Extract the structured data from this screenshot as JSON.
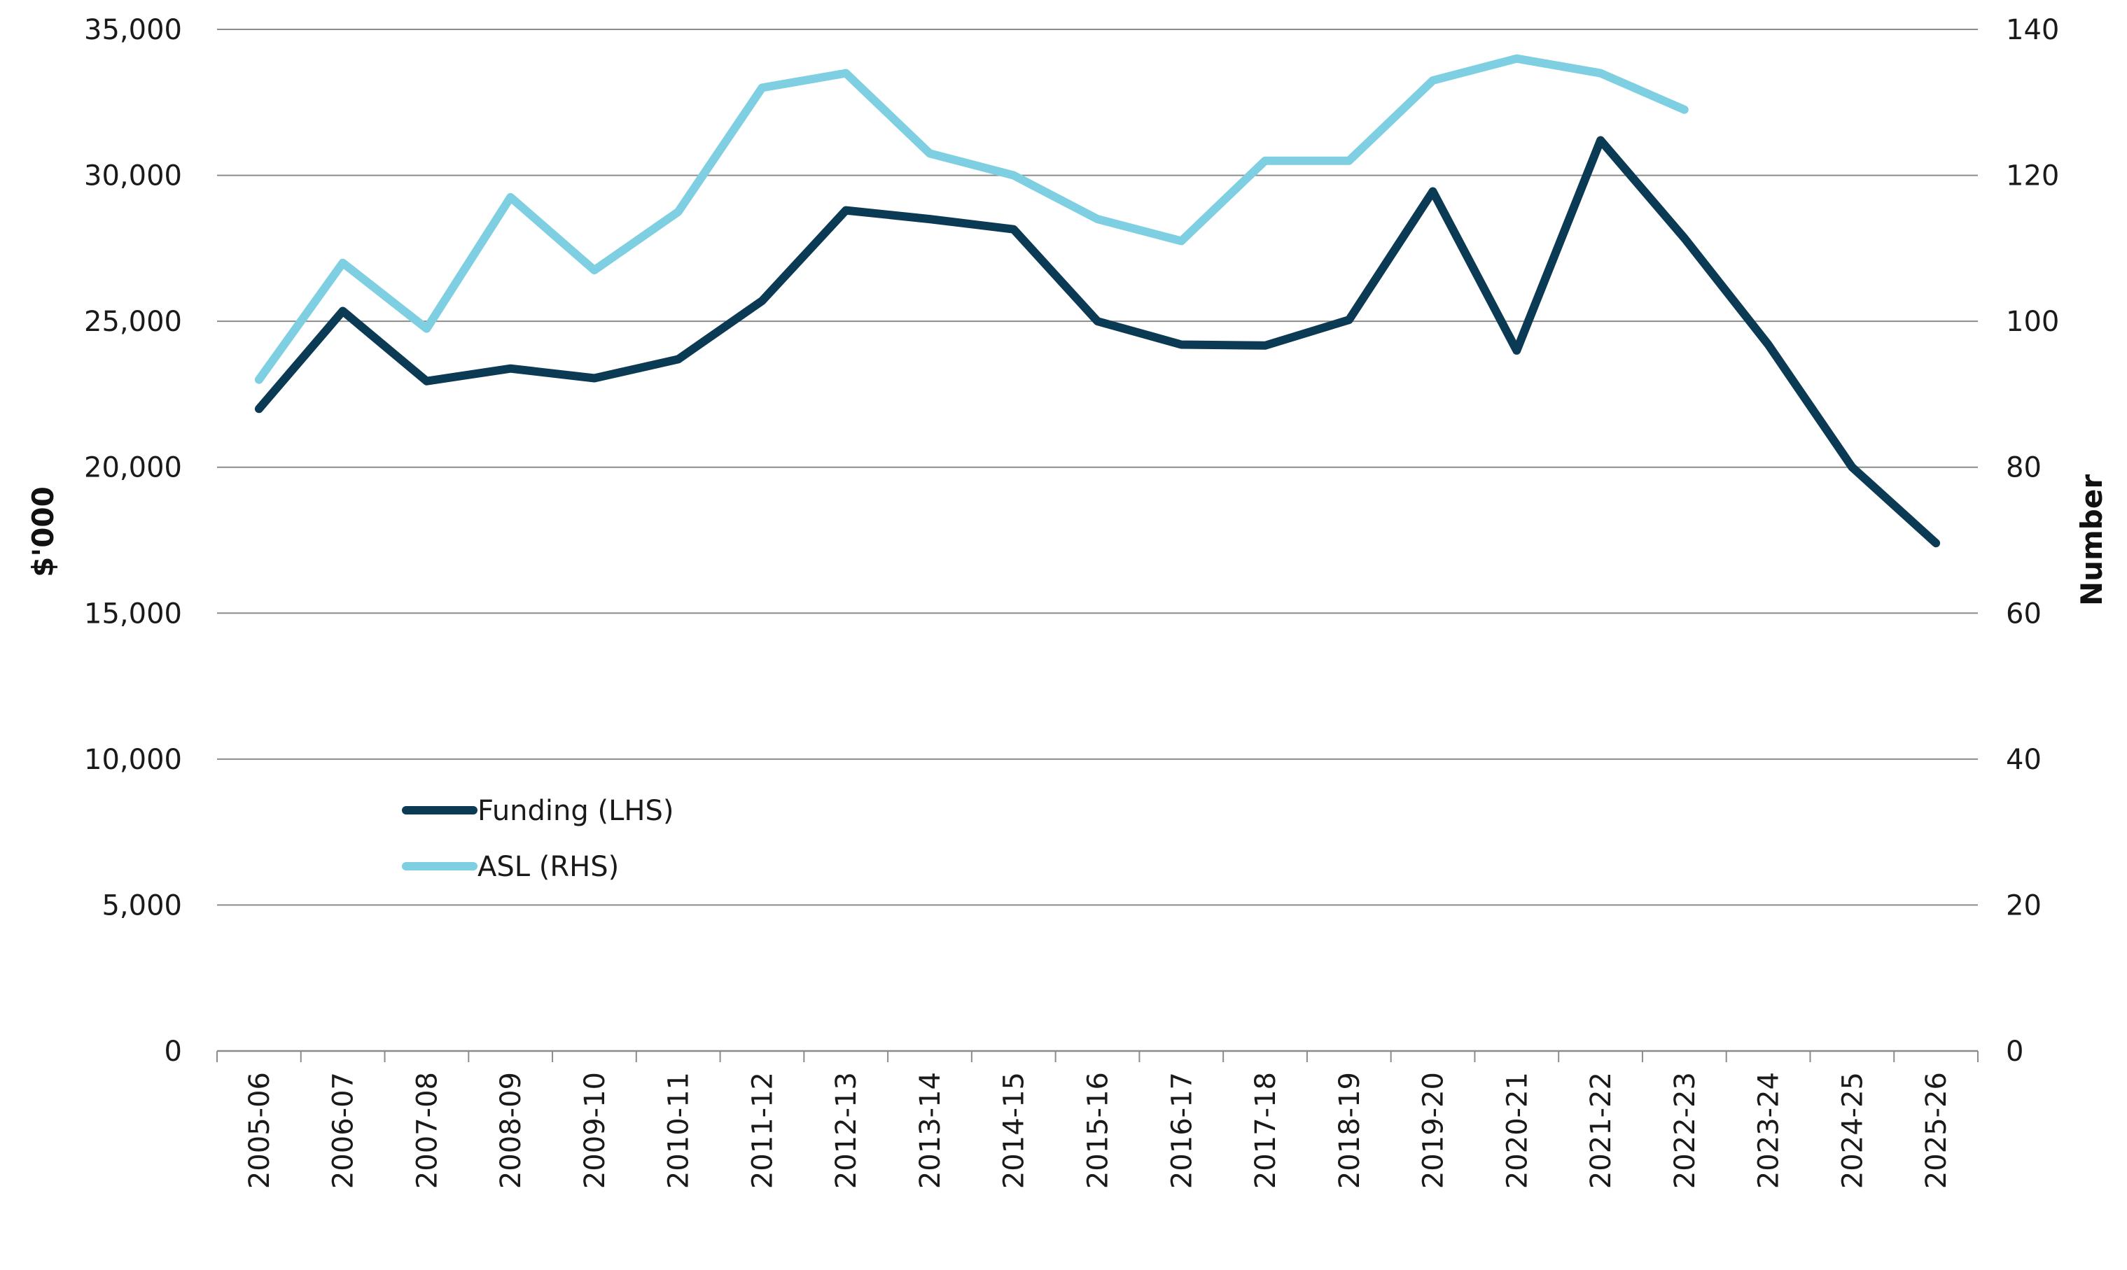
{
  "chart_data": {
    "type": "line",
    "title": "",
    "xlabel": "",
    "ylabel_left": "$'000",
    "ylabel_right": "Number",
    "ylim_left": [
      0,
      35000
    ],
    "ylim_right": [
      0,
      140
    ],
    "yticks_left": [
      "0",
      "5,000",
      "10,000",
      "15,000",
      "20,000",
      "25,000",
      "30,000",
      "35,000"
    ],
    "yticks_right": [
      "0",
      "20",
      "40",
      "60",
      "80",
      "100",
      "120",
      "140"
    ],
    "grid": "horizontal",
    "legend_position": "center-left",
    "categories": [
      "2005-06",
      "2006-07",
      "2007-08",
      "2008-09",
      "2009-10",
      "2010-11",
      "2011-12",
      "2012-13",
      "2013-14",
      "2014-15",
      "2015-16",
      "2016-17",
      "2017-18",
      "2018-19",
      "2019-20",
      "2020-21",
      "2021-22",
      "2022-23",
      "2023-24",
      "2024-25",
      "2025-26"
    ],
    "series": [
      {
        "name": "Funding (LHS)",
        "axis": "left",
        "color": "#0b3a55",
        "values": [
          22000,
          25350,
          22950,
          23380,
          23050,
          23700,
          25700,
          28800,
          28500,
          28150,
          25000,
          24200,
          24170,
          25050,
          29450,
          24000,
          31200,
          27850,
          24200,
          20000,
          17400
        ]
      },
      {
        "name": "ASL (RHS)",
        "axis": "right",
        "color": "#7ecfe1",
        "values": [
          92,
          108,
          99,
          117,
          107,
          115,
          132,
          134,
          123,
          120,
          114,
          111,
          122,
          122,
          133,
          136,
          134,
          129,
          null,
          null,
          null
        ]
      }
    ]
  }
}
